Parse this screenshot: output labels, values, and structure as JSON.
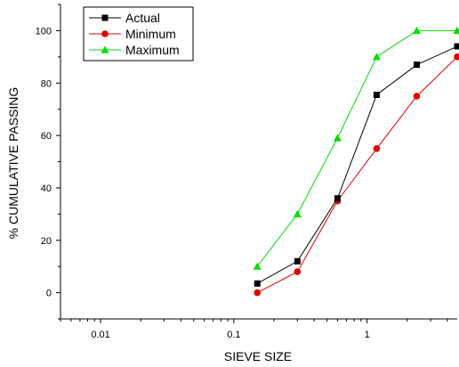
{
  "chart_data": {
    "type": "line",
    "xlabel": "SIEVE SIZE",
    "ylabel": "% CUMULATIVE PASSING",
    "xscale": "log",
    "xlim": [
      0.005,
      4.75
    ],
    "ylim": [
      -10,
      110
    ],
    "x_ticks": [
      {
        "value": 0.01,
        "label": "0.01"
      },
      {
        "value": 0.1,
        "label": "0.1"
      },
      {
        "value": 1,
        "label": "1"
      }
    ],
    "y_ticks": [
      {
        "value": 0,
        "label": "0"
      },
      {
        "value": 20,
        "label": "20"
      },
      {
        "value": 40,
        "label": "40"
      },
      {
        "value": 60,
        "label": "60"
      },
      {
        "value": 80,
        "label": "80"
      },
      {
        "value": 100,
        "label": "100"
      }
    ],
    "grid": false,
    "legend_position": "top-left",
    "series": [
      {
        "name": "Actual",
        "color": "#000000",
        "marker": "square",
        "x": [
          0.15,
          0.3,
          0.6,
          1.18,
          2.36,
          4.75
        ],
        "y": [
          3.5,
          12,
          36,
          75.5,
          87,
          94
        ]
      },
      {
        "name": "Minimum",
        "color": "#e00000",
        "marker": "circle",
        "x": [
          0.15,
          0.3,
          0.6,
          1.18,
          2.36,
          4.75
        ],
        "y": [
          0,
          8,
          35,
          55,
          75,
          90
        ]
      },
      {
        "name": "Maximum",
        "color": "#00dd00",
        "marker": "triangle",
        "x": [
          0.15,
          0.3,
          0.6,
          1.18,
          2.36,
          4.75
        ],
        "y": [
          10,
          30,
          59,
          90,
          100,
          100
        ]
      }
    ]
  }
}
